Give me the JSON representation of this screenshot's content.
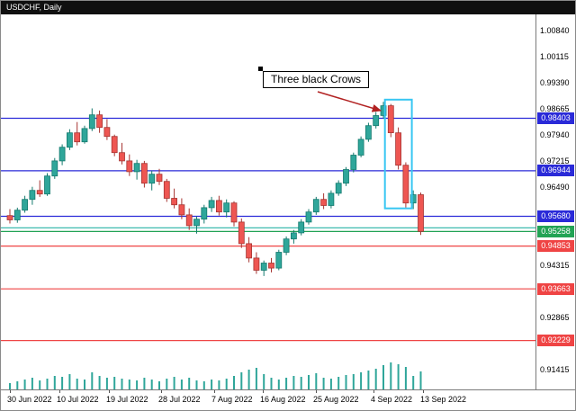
{
  "header": {
    "symbol_period": "USDCHF, Daily"
  },
  "chart_data": {
    "type": "candlestick",
    "symbol": "USDCHF",
    "timeframe": "Daily",
    "annotation": {
      "text": "Three black Crows"
    },
    "price_axis": {
      "min": 0.9087,
      "max": 1.0129,
      "tick_labels": [
        "1.00840",
        "1.00115",
        "0.99390",
        "0.98665",
        "0.97940",
        "0.97215",
        "0.96490",
        "0.94315",
        "0.92865",
        "0.91415"
      ]
    },
    "x_labels": [
      {
        "text": "30 Jun 2022",
        "index": 0
      },
      {
        "text": "10 Jul 2022",
        "index": 6.6
      },
      {
        "text": "19 Jul 2022",
        "index": 13.2
      },
      {
        "text": "28 Jul 2022",
        "index": 20.3
      },
      {
        "text": "7 Aug 2022",
        "index": 27.4
      },
      {
        "text": "16 Aug 2022",
        "index": 33.9
      },
      {
        "text": "25 Aug 2022",
        "index": 41.0
      },
      {
        "text": "4 Sep 2022",
        "index": 48.7
      },
      {
        "text": "13 Sep 2022",
        "index": 55.3
      }
    ],
    "levels": [
      {
        "price": 0.98403,
        "color": "blue",
        "label": "0.98403"
      },
      {
        "price": 0.96944,
        "color": "blue",
        "label": "0.96944"
      },
      {
        "price": 0.9568,
        "color": "blue",
        "label": "0.95680"
      },
      {
        "price": 0.9536,
        "color": "teal",
        "label": null
      },
      {
        "price": 0.95258,
        "color": "green",
        "label": "0.95258"
      },
      {
        "price": 0.94853,
        "color": "red",
        "label": "0.94853"
      },
      {
        "price": 0.93663,
        "color": "red",
        "label": "0.93663"
      },
      {
        "price": 0.92229,
        "color": "red",
        "label": "0.92229"
      }
    ],
    "pattern_rect": {
      "start_index": 50.2,
      "end_index": 53.8,
      "top_price": 0.9892,
      "bottom_price": 0.959
    },
    "arrow": {
      "from": [
        41.2,
        0.9914
      ],
      "to": [
        49.6,
        0.9862
      ]
    },
    "candles": [
      [
        0.957,
        0.9588,
        0.9548,
        0.9558
      ],
      [
        0.9558,
        0.9592,
        0.955,
        0.9585
      ],
      [
        0.9585,
        0.9625,
        0.9578,
        0.9615
      ],
      [
        0.9615,
        0.965,
        0.96,
        0.964
      ],
      [
        0.964,
        0.9668,
        0.9622,
        0.963
      ],
      [
        0.963,
        0.9688,
        0.9625,
        0.968
      ],
      [
        0.968,
        0.973,
        0.9672,
        0.9722
      ],
      [
        0.9722,
        0.9768,
        0.971,
        0.976
      ],
      [
        0.976,
        0.981,
        0.9752,
        0.98
      ],
      [
        0.98,
        0.983,
        0.9765,
        0.9775
      ],
      [
        0.9775,
        0.982,
        0.977,
        0.9812
      ],
      [
        0.9812,
        0.9868,
        0.9805,
        0.985
      ],
      [
        0.985,
        0.9862,
        0.98,
        0.9815
      ],
      [
        0.9815,
        0.9838,
        0.978,
        0.979
      ],
      [
        0.979,
        0.9795,
        0.9735,
        0.9745
      ],
      [
        0.9745,
        0.9772,
        0.9712,
        0.9722
      ],
      [
        0.9722,
        0.974,
        0.968,
        0.9692
      ],
      [
        0.9692,
        0.9725,
        0.967,
        0.9715
      ],
      [
        0.9715,
        0.9722,
        0.9648,
        0.966
      ],
      [
        0.966,
        0.9695,
        0.964,
        0.9685
      ],
      [
        0.9685,
        0.97,
        0.9655,
        0.9665
      ],
      [
        0.9665,
        0.9672,
        0.9608,
        0.9618
      ],
      [
        0.9618,
        0.9645,
        0.959,
        0.96
      ],
      [
        0.96,
        0.9618,
        0.956,
        0.9572
      ],
      [
        0.9572,
        0.959,
        0.953,
        0.9542
      ],
      [
        0.9542,
        0.9568,
        0.952,
        0.956
      ],
      [
        0.956,
        0.96,
        0.9548,
        0.9592
      ],
      [
        0.9592,
        0.9622,
        0.958,
        0.9612
      ],
      [
        0.9612,
        0.9625,
        0.957,
        0.958
      ],
      [
        0.958,
        0.9615,
        0.9565,
        0.9605
      ],
      [
        0.9605,
        0.961,
        0.954,
        0.9552
      ],
      [
        0.9552,
        0.9562,
        0.948,
        0.9492
      ],
      [
        0.9492,
        0.951,
        0.944,
        0.9452
      ],
      [
        0.9452,
        0.9468,
        0.9408,
        0.9418
      ],
      [
        0.9418,
        0.9445,
        0.9402,
        0.9438
      ],
      [
        0.9438,
        0.9452,
        0.9412,
        0.9424
      ],
      [
        0.9424,
        0.9475,
        0.9418,
        0.9468
      ],
      [
        0.9468,
        0.9512,
        0.946,
        0.9505
      ],
      [
        0.9505,
        0.953,
        0.9492,
        0.9522
      ],
      [
        0.9522,
        0.956,
        0.9515,
        0.9552
      ],
      [
        0.9552,
        0.9588,
        0.9545,
        0.958
      ],
      [
        0.958,
        0.9622,
        0.9572,
        0.9615
      ],
      [
        0.9615,
        0.9632,
        0.9588,
        0.9598
      ],
      [
        0.9598,
        0.964,
        0.959,
        0.9632
      ],
      [
        0.9632,
        0.9668,
        0.9625,
        0.966
      ],
      [
        0.966,
        0.9705,
        0.9652,
        0.9698
      ],
      [
        0.9698,
        0.9745,
        0.969,
        0.9738
      ],
      [
        0.9738,
        0.979,
        0.9732,
        0.9782
      ],
      [
        0.9782,
        0.9828,
        0.9775,
        0.982
      ],
      [
        0.982,
        0.9858,
        0.9812,
        0.9848
      ],
      [
        0.9848,
        0.9886,
        0.984,
        0.9875
      ],
      [
        0.9875,
        0.988,
        0.9788,
        0.98
      ],
      [
        0.98,
        0.9815,
        0.9698,
        0.971
      ],
      [
        0.971,
        0.9718,
        0.9592,
        0.9605
      ],
      [
        0.9605,
        0.964,
        0.9588,
        0.9628
      ],
      [
        0.9628,
        0.9634,
        0.9516,
        0.9526
      ]
    ],
    "volumes": [
      7,
      9,
      11,
      13,
      10,
      12,
      15,
      14,
      17,
      12,
      11,
      19,
      15,
      13,
      14,
      12,
      11,
      10,
      13,
      11,
      9,
      12,
      14,
      11,
      13,
      10,
      9,
      11,
      10,
      12,
      15,
      19,
      22,
      24,
      17,
      13,
      11,
      13,
      15,
      14,
      16,
      18,
      13,
      12,
      14,
      16,
      17,
      19,
      21,
      23,
      27,
      30,
      28,
      25,
      15,
      20
    ],
    "colors": {
      "up": "#2fa69a",
      "up_border": "#147a6e",
      "down": "#ee5652",
      "down_border": "#a63532",
      "volume": "#2fa69a",
      "levels": {
        "blue": "#2a2ad8",
        "red": "#ef4444",
        "green": "#22a355",
        "teal": "#26b3a4"
      },
      "rect": "#38c6f2",
      "arrow": "#b22222"
    }
  }
}
